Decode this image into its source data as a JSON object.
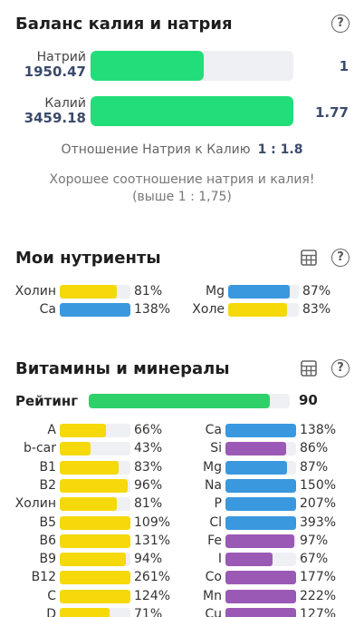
{
  "balance": {
    "title": "Баланс калия и натрия",
    "sodium": {
      "label": "Натрий",
      "value": "1950.47",
      "ratio": "1",
      "level": 0.56
    },
    "potassium": {
      "label": "Калий",
      "value": "3459.18",
      "ratio": "1.77",
      "level": 1.0
    },
    "ratio_label": "Отношение Натрия к Калию",
    "ratio_value": "1 : 1.8",
    "note_line1": "Хорошее соотношение натрия и калия!",
    "note_line2": "(выше 1 : 1,75)"
  },
  "my_nutrients": {
    "title": "Мои нутриенты",
    "items": [
      {
        "label": "Холин",
        "pct": "81%",
        "level": 0.81,
        "color": "#f5d90a"
      },
      {
        "label": "Mg",
        "pct": "87%",
        "level": 0.87,
        "color": "#3a98de"
      },
      {
        "label": "Ca",
        "pct": "138%",
        "level": 1.0,
        "color": "#3a98de"
      },
      {
        "label": "Холе",
        "pct": "83%",
        "level": 0.83,
        "color": "#f5d90a"
      }
    ]
  },
  "vitamins": {
    "title": "Витамины и минералы",
    "rating_label": "Рейтинг",
    "rating_value": "90",
    "rating_level": 0.9,
    "left": [
      {
        "label": "A",
        "pct": "66%",
        "level": 0.66,
        "color": "#f5d90a"
      },
      {
        "label": "b-car",
        "pct": "43%",
        "level": 0.43,
        "color": "#f5d90a"
      },
      {
        "label": "B1",
        "pct": "83%",
        "level": 0.83,
        "color": "#f5d90a"
      },
      {
        "label": "B2",
        "pct": "96%",
        "level": 0.96,
        "color": "#f5d90a"
      },
      {
        "label": "Холин",
        "pct": "81%",
        "level": 0.81,
        "color": "#f5d90a"
      },
      {
        "label": "B5",
        "pct": "109%",
        "level": 1.0,
        "color": "#f5d90a"
      },
      {
        "label": "B6",
        "pct": "131%",
        "level": 1.0,
        "color": "#f5d90a"
      },
      {
        "label": "B9",
        "pct": "94%",
        "level": 0.94,
        "color": "#f5d90a"
      },
      {
        "label": "B12",
        "pct": "261%",
        "level": 1.0,
        "color": "#f5d90a"
      },
      {
        "label": "C",
        "pct": "124%",
        "level": 1.0,
        "color": "#f5d90a"
      },
      {
        "label": "D",
        "pct": "71%",
        "level": 0.71,
        "color": "#f5d90a"
      }
    ],
    "right": [
      {
        "label": "Ca",
        "pct": "138%",
        "level": 1.0,
        "color": "#3a98de"
      },
      {
        "label": "Si",
        "pct": "86%",
        "level": 0.86,
        "color": "#9b59b6"
      },
      {
        "label": "Mg",
        "pct": "87%",
        "level": 0.87,
        "color": "#3a98de"
      },
      {
        "label": "Na",
        "pct": "150%",
        "level": 1.0,
        "color": "#3a98de"
      },
      {
        "label": "P",
        "pct": "207%",
        "level": 1.0,
        "color": "#3a98de"
      },
      {
        "label": "Cl",
        "pct": "393%",
        "level": 1.0,
        "color": "#3a98de"
      },
      {
        "label": "Fe",
        "pct": "97%",
        "level": 0.97,
        "color": "#9b59b6"
      },
      {
        "label": "I",
        "pct": "67%",
        "level": 0.67,
        "color": "#9b59b6"
      },
      {
        "label": "Co",
        "pct": "177%",
        "level": 1.0,
        "color": "#9b59b6"
      },
      {
        "label": "Mn",
        "pct": "222%",
        "level": 1.0,
        "color": "#9b59b6"
      },
      {
        "label": "Cu",
        "pct": "127%",
        "level": 1.0,
        "color": "#9b59b6"
      }
    ]
  },
  "icons": {
    "help": "?",
    "table": "table-icon"
  }
}
